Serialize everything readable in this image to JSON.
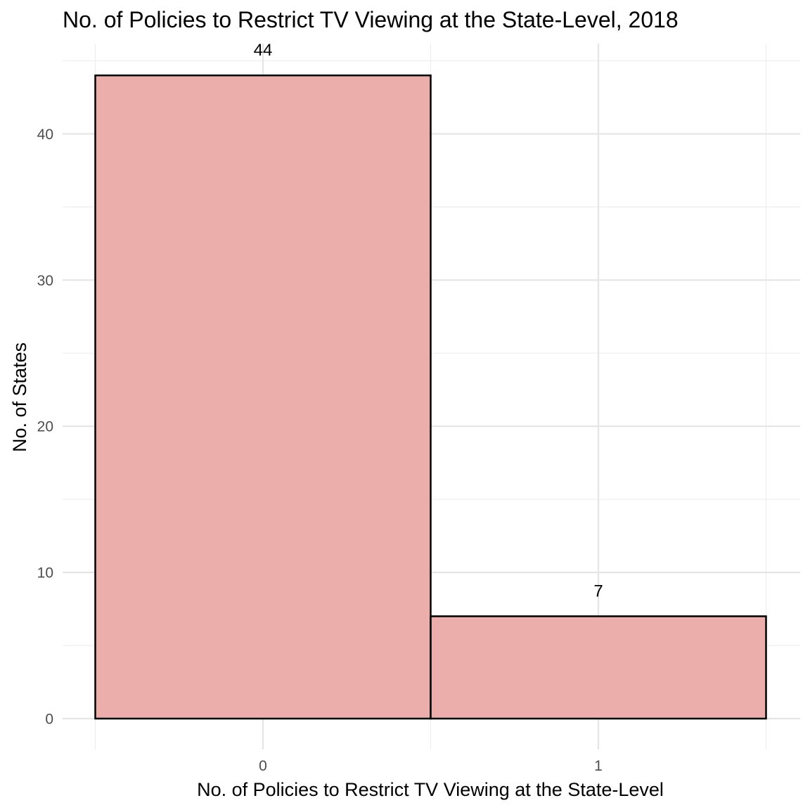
{
  "chart_data": {
    "type": "bar",
    "title": "No. of Policies to Restrict TV Viewing at the State-Level, 2018",
    "xlabel": "No. of Policies to Restrict TV Viewing at the State-Level",
    "ylabel": "No. of States",
    "categories": [
      "0",
      "1"
    ],
    "values": [
      44,
      7
    ],
    "data_labels": [
      "44",
      "7"
    ],
    "ylim": [
      0,
      45
    ],
    "y_ticks": [
      0,
      10,
      20,
      30,
      40
    ],
    "y_minor_ticks": [
      5,
      15,
      25,
      35,
      45
    ],
    "grid": true,
    "legend": "none",
    "bar_fill": "#ecaeaa",
    "bar_outline": "#000000"
  }
}
